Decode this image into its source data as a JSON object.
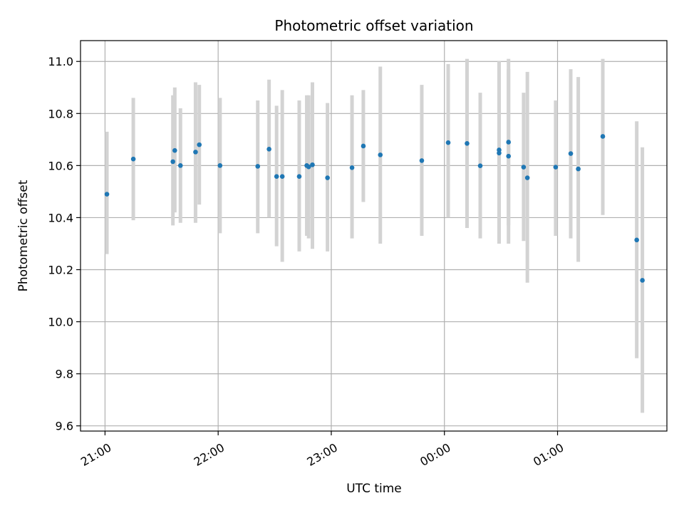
{
  "chart_data": {
    "type": "scatter",
    "title": "Photometric offset variation",
    "xlabel": "UTC time",
    "ylabel": "Photometric offset",
    "ylim": [
      9.58,
      11.08
    ],
    "xlim": [
      "20:47",
      "01:58"
    ],
    "grid": true,
    "x_ticks": [
      "21:00",
      "22:00",
      "23:00",
      "00:00",
      "01:00"
    ],
    "y_ticks": [
      "9.6",
      "9.8",
      "10.0",
      "10.2",
      "10.4",
      "10.6",
      "10.8",
      "11.0"
    ],
    "colors": {
      "point": "#1f77b4",
      "errorbar": "#d3d3d3",
      "grid": "#b0b0b0",
      "axes": "#000000"
    },
    "points": [
      {
        "x": "21:01",
        "y": 10.49,
        "err": [
          10.26,
          10.73
        ]
      },
      {
        "x": "21:15",
        "y": 10.625,
        "err": [
          10.39,
          10.86
        ]
      },
      {
        "x": "21:36",
        "y": 10.615,
        "err": [
          10.37,
          10.87
        ]
      },
      {
        "x": "21:37",
        "y": 10.658,
        "err": [
          10.42,
          10.9
        ]
      },
      {
        "x": "21:40",
        "y": 10.6,
        "err": [
          10.38,
          10.82
        ]
      },
      {
        "x": "21:48",
        "y": 10.652,
        "err": [
          10.38,
          10.92
        ]
      },
      {
        "x": "21:50",
        "y": 10.68,
        "err": [
          10.45,
          10.91
        ]
      },
      {
        "x": "22:01",
        "y": 10.6,
        "err": [
          10.34,
          10.86
        ]
      },
      {
        "x": "22:21",
        "y": 10.597,
        "err": [
          10.34,
          10.85
        ]
      },
      {
        "x": "22:27",
        "y": 10.663,
        "err": [
          10.4,
          10.93
        ]
      },
      {
        "x": "22:31",
        "y": 10.558,
        "err": [
          10.29,
          10.83
        ]
      },
      {
        "x": "22:34",
        "y": 10.558,
        "err": [
          10.23,
          10.89
        ]
      },
      {
        "x": "22:43",
        "y": 10.558,
        "err": [
          10.27,
          10.85
        ]
      },
      {
        "x": "22:47",
        "y": 10.6,
        "err": [
          10.33,
          10.87
        ]
      },
      {
        "x": "22:48",
        "y": 10.595,
        "err": [
          10.32,
          10.87
        ]
      },
      {
        "x": "22:50",
        "y": 10.603,
        "err": [
          10.28,
          10.92
        ]
      },
      {
        "x": "22:58",
        "y": 10.553,
        "err": [
          10.27,
          10.84
        ]
      },
      {
        "x": "23:11",
        "y": 10.592,
        "err": [
          10.32,
          10.87
        ]
      },
      {
        "x": "23:17",
        "y": 10.675,
        "err": [
          10.46,
          10.89
        ]
      },
      {
        "x": "23:26",
        "y": 10.641,
        "err": [
          10.3,
          10.98
        ]
      },
      {
        "x": "23:48",
        "y": 10.619,
        "err": [
          10.33,
          10.91
        ]
      },
      {
        "x": "00:02",
        "y": 10.688,
        "err": [
          10.4,
          10.99
        ]
      },
      {
        "x": "00:12",
        "y": 10.685,
        "err": [
          10.36,
          11.01
        ]
      },
      {
        "x": "00:19",
        "y": 10.599,
        "err": [
          10.32,
          10.88
        ]
      },
      {
        "x": "00:29",
        "y": 10.66,
        "err": [
          10.31,
          11.0
        ]
      },
      {
        "x": "00:29",
        "y": 10.648,
        "err": [
          10.3,
          11.0
        ]
      },
      {
        "x": "00:34",
        "y": 10.636,
        "err": [
          10.3,
          10.97
        ]
      },
      {
        "x": "00:34",
        "y": 10.69,
        "err": [
          10.37,
          11.01
        ]
      },
      {
        "x": "00:42",
        "y": 10.594,
        "err": [
          10.31,
          10.88
        ]
      },
      {
        "x": "00:44",
        "y": 10.553,
        "err": [
          10.15,
          10.96
        ]
      },
      {
        "x": "00:59",
        "y": 10.594,
        "err": [
          10.33,
          10.85
        ]
      },
      {
        "x": "01:07",
        "y": 10.646,
        "err": [
          10.32,
          10.97
        ]
      },
      {
        "x": "01:11",
        "y": 10.587,
        "err": [
          10.23,
          10.94
        ]
      },
      {
        "x": "01:24",
        "y": 10.712,
        "err": [
          10.41,
          11.01
        ]
      },
      {
        "x": "01:42",
        "y": 10.314,
        "err": [
          9.86,
          10.77
        ]
      },
      {
        "x": "01:45",
        "y": 10.159,
        "err": [
          9.65,
          10.67
        ]
      }
    ]
  }
}
